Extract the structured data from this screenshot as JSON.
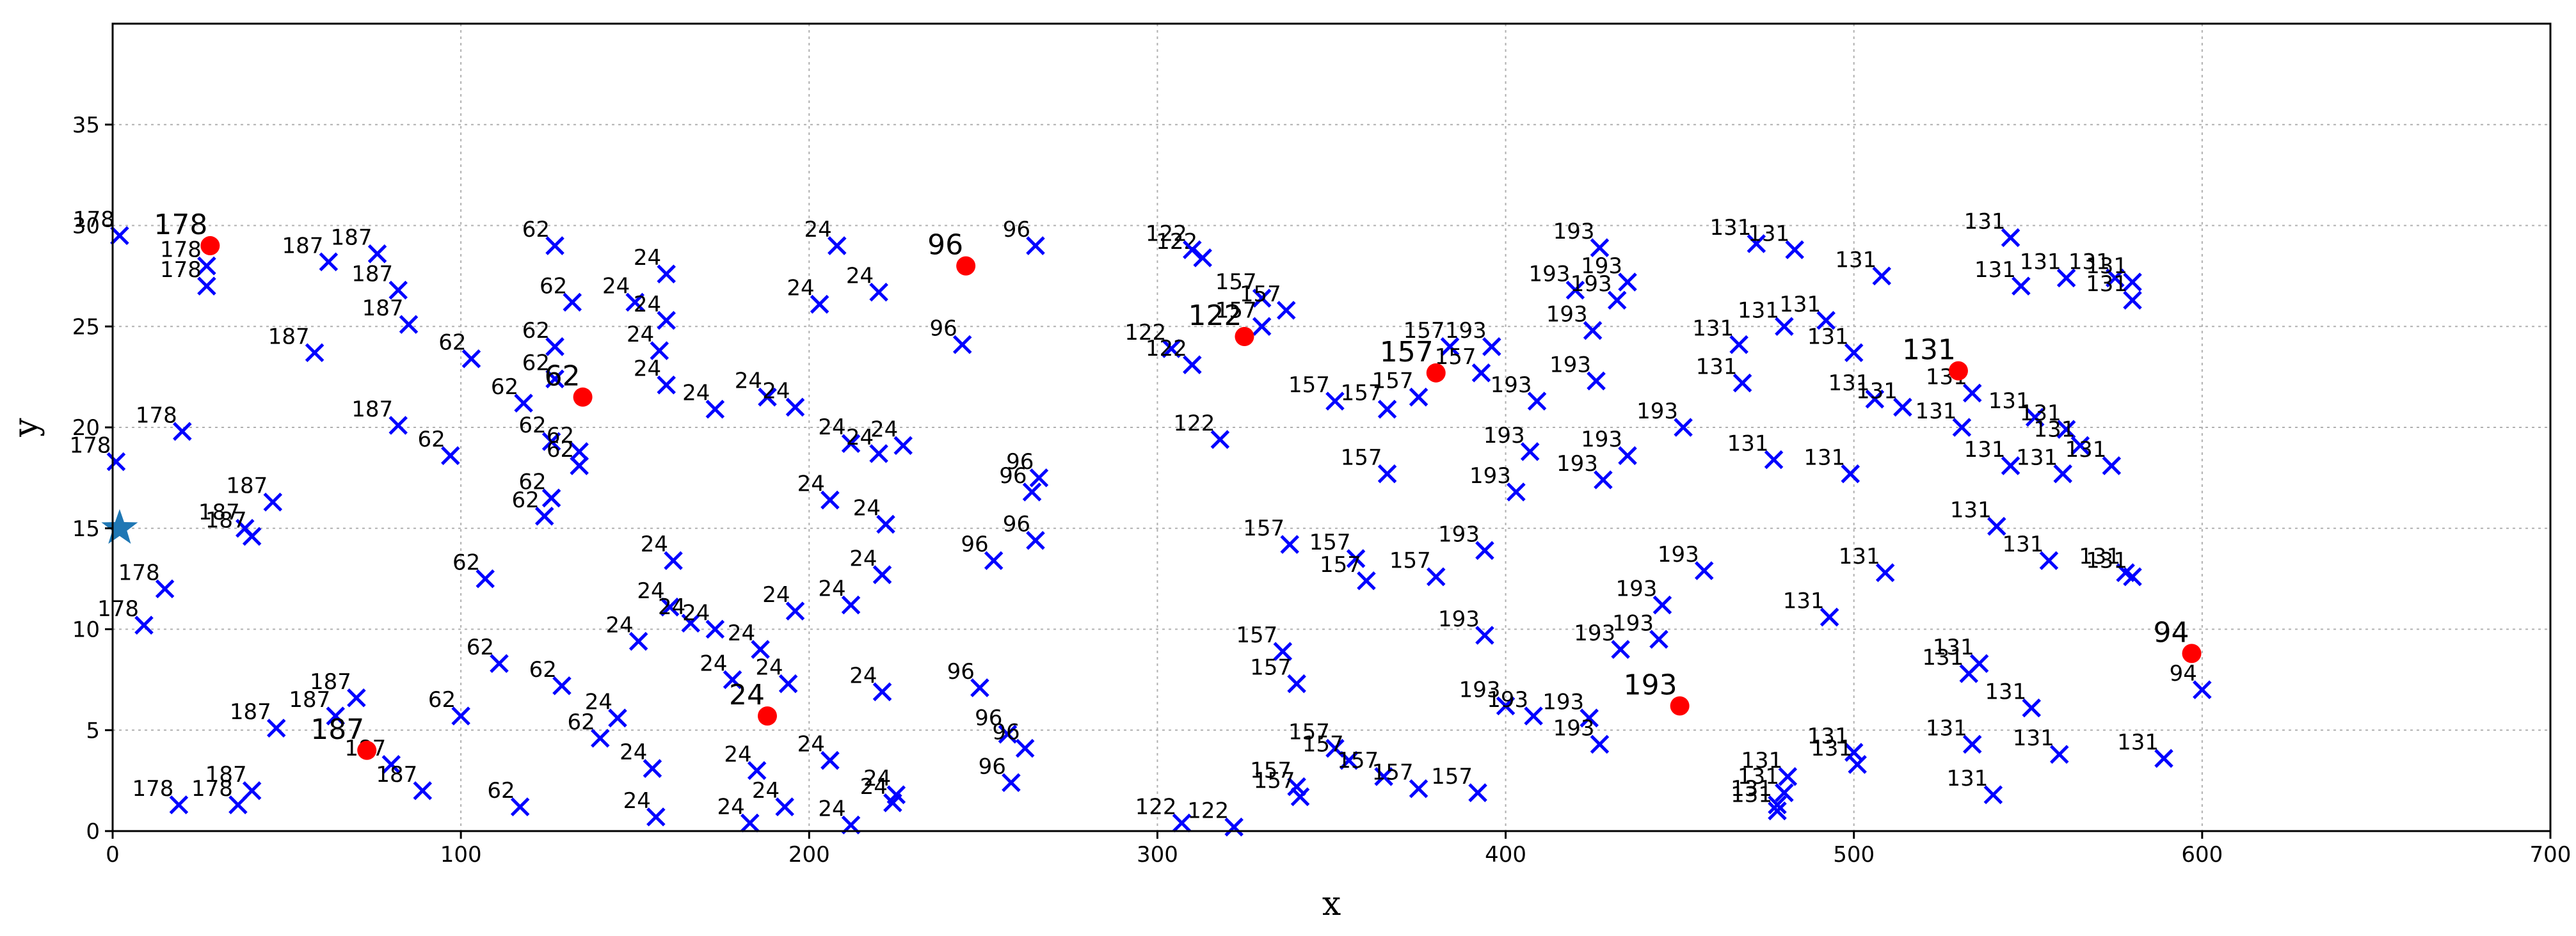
{
  "chart_data": {
    "type": "scatter",
    "xlabel": "x",
    "ylabel": "y",
    "xlim": [
      0,
      700
    ],
    "ylim": [
      0,
      40
    ],
    "xticks": [
      0,
      100,
      200,
      300,
      400,
      500,
      600,
      700
    ],
    "yticks": [
      0,
      5,
      10,
      15,
      20,
      25,
      30,
      35
    ],
    "grid": true,
    "colors": {
      "customer": "#0000ff",
      "center": "#ff0000",
      "depot": "#1f77b4"
    },
    "depot": {
      "x": 2,
      "y": 15,
      "marker": "star"
    },
    "centers": [
      {
        "label": "178",
        "x": 28,
        "y": 29
      },
      {
        "label": "187",
        "x": 73,
        "y": 4
      },
      {
        "label": "62",
        "x": 135,
        "y": 21.5
      },
      {
        "label": "24",
        "x": 188,
        "y": 5.7
      },
      {
        "label": "96",
        "x": 245,
        "y": 28
      },
      {
        "label": "122",
        "x": 325,
        "y": 24.5
      },
      {
        "label": "157",
        "x": 380,
        "y": 22.7
      },
      {
        "label": "193",
        "x": 450,
        "y": 6.2
      },
      {
        "label": "131",
        "x": 530,
        "y": 22.8
      },
      {
        "label": "94",
        "x": 597,
        "y": 8.8
      }
    ],
    "customers": [
      {
        "label": "178",
        "x": 2,
        "y": 29.5
      },
      {
        "label": "178",
        "x": 27,
        "y": 28
      },
      {
        "label": "178",
        "x": 27,
        "y": 27
      },
      {
        "label": "178",
        "x": 20,
        "y": 19.8
      },
      {
        "label": "178",
        "x": 1,
        "y": 18.3
      },
      {
        "label": "178",
        "x": 15,
        "y": 12
      },
      {
        "label": "178",
        "x": 9,
        "y": 10.2
      },
      {
        "label": "178",
        "x": 19,
        "y": 1.3
      },
      {
        "label": "178",
        "x": 36,
        "y": 1.3
      },
      {
        "label": "187",
        "x": 76,
        "y": 28.6
      },
      {
        "label": "187",
        "x": 62,
        "y": 28.2
      },
      {
        "label": "187",
        "x": 82,
        "y": 26.8
      },
      {
        "label": "187",
        "x": 85,
        "y": 25.1
      },
      {
        "label": "187",
        "x": 58,
        "y": 23.7
      },
      {
        "label": "187",
        "x": 82,
        "y": 20.1
      },
      {
        "label": "187",
        "x": 46,
        "y": 16.3
      },
      {
        "label": "187",
        "x": 38,
        "y": 15
      },
      {
        "label": "187",
        "x": 40,
        "y": 14.6
      },
      {
        "label": "187",
        "x": 70,
        "y": 6.6
      },
      {
        "label": "187",
        "x": 64,
        "y": 5.7
      },
      {
        "label": "187",
        "x": 47,
        "y": 5.1
      },
      {
        "label": "187",
        "x": 80,
        "y": 3.3
      },
      {
        "label": "187",
        "x": 89,
        "y": 2
      },
      {
        "label": "187",
        "x": 40,
        "y": 2
      },
      {
        "label": "62",
        "x": 127,
        "y": 29
      },
      {
        "label": "62",
        "x": 132,
        "y": 26.2
      },
      {
        "label": "62",
        "x": 127,
        "y": 24
      },
      {
        "label": "62",
        "x": 103,
        "y": 23.4
      },
      {
        "label": "62",
        "x": 127,
        "y": 22.4
      },
      {
        "label": "62",
        "x": 118,
        "y": 21.2
      },
      {
        "label": "62",
        "x": 126,
        "y": 19.3
      },
      {
        "label": "62",
        "x": 134,
        "y": 18.8
      },
      {
        "label": "62",
        "x": 134,
        "y": 18.1
      },
      {
        "label": "62",
        "x": 97,
        "y": 18.6
      },
      {
        "label": "62",
        "x": 126,
        "y": 16.5
      },
      {
        "label": "62",
        "x": 124,
        "y": 15.6
      },
      {
        "label": "62",
        "x": 107,
        "y": 12.5
      },
      {
        "label": "62",
        "x": 111,
        "y": 8.3
      },
      {
        "label": "62",
        "x": 129,
        "y": 7.2
      },
      {
        "label": "62",
        "x": 100,
        "y": 5.7
      },
      {
        "label": "62",
        "x": 140,
        "y": 4.6
      },
      {
        "label": "62",
        "x": 117,
        "y": 1.2
      },
      {
        "label": "24",
        "x": 159,
        "y": 27.6
      },
      {
        "label": "24",
        "x": 150,
        "y": 26.2
      },
      {
        "label": "24",
        "x": 159,
        "y": 25.3
      },
      {
        "label": "24",
        "x": 157,
        "y": 23.8
      },
      {
        "label": "24",
        "x": 159,
        "y": 22.1
      },
      {
        "label": "24",
        "x": 208,
        "y": 29
      },
      {
        "label": "24",
        "x": 203,
        "y": 26.1
      },
      {
        "label": "24",
        "x": 220,
        "y": 26.7
      },
      {
        "label": "24",
        "x": 173,
        "y": 20.9
      },
      {
        "label": "24",
        "x": 188,
        "y": 21.5
      },
      {
        "label": "24",
        "x": 196,
        "y": 21
      },
      {
        "label": "24",
        "x": 212,
        "y": 19.2
      },
      {
        "label": "24",
        "x": 220,
        "y": 18.7
      },
      {
        "label": "24",
        "x": 227,
        "y": 19.1
      },
      {
        "label": "24",
        "x": 206,
        "y": 16.4
      },
      {
        "label": "24",
        "x": 222,
        "y": 15.2
      },
      {
        "label": "24",
        "x": 161,
        "y": 13.4
      },
      {
        "label": "24",
        "x": 221,
        "y": 12.7
      },
      {
        "label": "24",
        "x": 160,
        "y": 11.1
      },
      {
        "label": "24",
        "x": 166,
        "y": 10.3
      },
      {
        "label": "24",
        "x": 173,
        "y": 10
      },
      {
        "label": "24",
        "x": 196,
        "y": 10.9
      },
      {
        "label": "24",
        "x": 212,
        "y": 11.2
      },
      {
        "label": "24",
        "x": 151,
        "y": 9.4
      },
      {
        "label": "24",
        "x": 186,
        "y": 9
      },
      {
        "label": "24",
        "x": 178,
        "y": 7.5
      },
      {
        "label": "24",
        "x": 194,
        "y": 7.3
      },
      {
        "label": "24",
        "x": 221,
        "y": 6.9
      },
      {
        "label": "24",
        "x": 145,
        "y": 5.6
      },
      {
        "label": "24",
        "x": 155,
        "y": 3.1
      },
      {
        "label": "24",
        "x": 185,
        "y": 3
      },
      {
        "label": "24",
        "x": 206,
        "y": 3.5
      },
      {
        "label": "24",
        "x": 225,
        "y": 1.8
      },
      {
        "label": "24",
        "x": 224,
        "y": 1.4
      },
      {
        "label": "24",
        "x": 156,
        "y": 0.7
      },
      {
        "label": "24",
        "x": 183,
        "y": 0.4
      },
      {
        "label": "24",
        "x": 193,
        "y": 1.2
      },
      {
        "label": "24",
        "x": 212,
        "y": 0.3
      },
      {
        "label": "96",
        "x": 265,
        "y": 29
      },
      {
        "label": "96",
        "x": 244,
        "y": 24.1
      },
      {
        "label": "96",
        "x": 266,
        "y": 17.5
      },
      {
        "label": "96",
        "x": 264,
        "y": 16.8
      },
      {
        "label": "96",
        "x": 265,
        "y": 14.4
      },
      {
        "label": "96",
        "x": 253,
        "y": 13.4
      },
      {
        "label": "96",
        "x": 249,
        "y": 7.1
      },
      {
        "label": "96",
        "x": 257,
        "y": 4.8
      },
      {
        "label": "96",
        "x": 262,
        "y": 4.1
      },
      {
        "label": "96",
        "x": 258,
        "y": 2.4
      },
      {
        "label": "122",
        "x": 313,
        "y": 28.4
      },
      {
        "label": "122",
        "x": 310,
        "y": 28.8
      },
      {
        "label": "122",
        "x": 304,
        "y": 23.9
      },
      {
        "label": "122",
        "x": 310,
        "y": 23.1
      },
      {
        "label": "122",
        "x": 318,
        "y": 19.4
      },
      {
        "label": "122",
        "x": 307,
        "y": 0.4
      },
      {
        "label": "122",
        "x": 322,
        "y": 0.2
      },
      {
        "label": "157",
        "x": 330,
        "y": 26.4
      },
      {
        "label": "157",
        "x": 337,
        "y": 25.8
      },
      {
        "label": "157",
        "x": 330,
        "y": 25
      },
      {
        "label": "157",
        "x": 384,
        "y": 24
      },
      {
        "label": "157",
        "x": 393,
        "y": 22.7
      },
      {
        "label": "157",
        "x": 351,
        "y": 21.3
      },
      {
        "label": "157",
        "x": 366,
        "y": 20.9
      },
      {
        "label": "157",
        "x": 375,
        "y": 21.5
      },
      {
        "label": "157",
        "x": 366,
        "y": 17.7
      },
      {
        "label": "157",
        "x": 338,
        "y": 14.2
      },
      {
        "label": "157",
        "x": 357,
        "y": 13.5
      },
      {
        "label": "157",
        "x": 360,
        "y": 12.4
      },
      {
        "label": "157",
        "x": 380,
        "y": 12.6
      },
      {
        "label": "157",
        "x": 336,
        "y": 8.9
      },
      {
        "label": "157",
        "x": 340,
        "y": 7.3
      },
      {
        "label": "157",
        "x": 351,
        "y": 4.1
      },
      {
        "label": "157",
        "x": 355,
        "y": 3.5
      },
      {
        "label": "157",
        "x": 365,
        "y": 2.7
      },
      {
        "label": "157",
        "x": 375,
        "y": 2.1
      },
      {
        "label": "157",
        "x": 340,
        "y": 2.2
      },
      {
        "label": "157",
        "x": 341,
        "y": 1.7
      },
      {
        "label": "157",
        "x": 392,
        "y": 1.9
      },
      {
        "label": "193",
        "x": 427,
        "y": 28.9
      },
      {
        "label": "193",
        "x": 435,
        "y": 27.2
      },
      {
        "label": "193",
        "x": 420,
        "y": 26.8
      },
      {
        "label": "193",
        "x": 432,
        "y": 26.3
      },
      {
        "label": "193",
        "x": 425,
        "y": 24.8
      },
      {
        "label": "193",
        "x": 396,
        "y": 24
      },
      {
        "label": "193",
        "x": 409,
        "y": 21.3
      },
      {
        "label": "193",
        "x": 426,
        "y": 22.3
      },
      {
        "label": "193",
        "x": 451,
        "y": 20
      },
      {
        "label": "193",
        "x": 407,
        "y": 18.8
      },
      {
        "label": "193",
        "x": 435,
        "y": 18.6
      },
      {
        "label": "193",
        "x": 403,
        "y": 16.8
      },
      {
        "label": "193",
        "x": 428,
        "y": 17.4
      },
      {
        "label": "193",
        "x": 394,
        "y": 13.9
      },
      {
        "label": "193",
        "x": 457,
        "y": 12.9
      },
      {
        "label": "193",
        "x": 445,
        "y": 11.2
      },
      {
        "label": "193",
        "x": 394,
        "y": 9.7
      },
      {
        "label": "193",
        "x": 433,
        "y": 9
      },
      {
        "label": "193",
        "x": 444,
        "y": 9.5
      },
      {
        "label": "193",
        "x": 400,
        "y": 6.2
      },
      {
        "label": "193",
        "x": 408,
        "y": 5.7
      },
      {
        "label": "193",
        "x": 424,
        "y": 5.6
      },
      {
        "label": "193",
        "x": 427,
        "y": 4.3
      },
      {
        "label": "131",
        "x": 545,
        "y": 29.4
      },
      {
        "label": "131",
        "x": 472,
        "y": 29.1
      },
      {
        "label": "131",
        "x": 483,
        "y": 28.8
      },
      {
        "label": "131",
        "x": 508,
        "y": 27.5
      },
      {
        "label": "131",
        "x": 548,
        "y": 27
      },
      {
        "label": "131",
        "x": 561,
        "y": 27.4
      },
      {
        "label": "131",
        "x": 575,
        "y": 27.4
      },
      {
        "label": "131",
        "x": 580,
        "y": 27.2
      },
      {
        "label": "131",
        "x": 580,
        "y": 26.3
      },
      {
        "label": "131",
        "x": 480,
        "y": 25
      },
      {
        "label": "131",
        "x": 492,
        "y": 25.3
      },
      {
        "label": "131",
        "x": 500,
        "y": 23.7
      },
      {
        "label": "131",
        "x": 467,
        "y": 24.1
      },
      {
        "label": "131",
        "x": 468,
        "y": 22.2
      },
      {
        "label": "131",
        "x": 534,
        "y": 21.7
      },
      {
        "label": "131",
        "x": 506,
        "y": 21.4
      },
      {
        "label": "131",
        "x": 514,
        "y": 21
      },
      {
        "label": "131",
        "x": 531,
        "y": 20
      },
      {
        "label": "131",
        "x": 552,
        "y": 20.5
      },
      {
        "label": "131",
        "x": 561,
        "y": 19.9
      },
      {
        "label": "131",
        "x": 565,
        "y": 19.1
      },
      {
        "label": "131",
        "x": 545,
        "y": 18.1
      },
      {
        "label": "131",
        "x": 560,
        "y": 17.7
      },
      {
        "label": "131",
        "x": 574,
        "y": 18.1
      },
      {
        "label": "131",
        "x": 477,
        "y": 18.4
      },
      {
        "label": "131",
        "x": 499,
        "y": 17.7
      },
      {
        "label": "131",
        "x": 541,
        "y": 15.1
      },
      {
        "label": "131",
        "x": 556,
        "y": 13.4
      },
      {
        "label": "131",
        "x": 578,
        "y": 12.8
      },
      {
        "label": "131",
        "x": 580,
        "y": 12.6
      },
      {
        "label": "131",
        "x": 509,
        "y": 12.8
      },
      {
        "label": "131",
        "x": 493,
        "y": 10.6
      },
      {
        "label": "131",
        "x": 536,
        "y": 8.3
      },
      {
        "label": "131",
        "x": 533,
        "y": 7.8
      },
      {
        "label": "131",
        "x": 551,
        "y": 6.1
      },
      {
        "label": "131",
        "x": 500,
        "y": 3.9
      },
      {
        "label": "131",
        "x": 501,
        "y": 3.3
      },
      {
        "label": "131",
        "x": 534,
        "y": 4.3
      },
      {
        "label": "131",
        "x": 559,
        "y": 3.8
      },
      {
        "label": "131",
        "x": 589,
        "y": 3.6
      },
      {
        "label": "131",
        "x": 481,
        "y": 2.7
      },
      {
        "label": "131",
        "x": 480,
        "y": 1.9
      },
      {
        "label": "131",
        "x": 478,
        "y": 1.3
      },
      {
        "label": "131",
        "x": 478,
        "y": 1
      },
      {
        "label": "131",
        "x": 540,
        "y": 1.8
      },
      {
        "label": "94",
        "x": 600,
        "y": 7
      }
    ]
  }
}
